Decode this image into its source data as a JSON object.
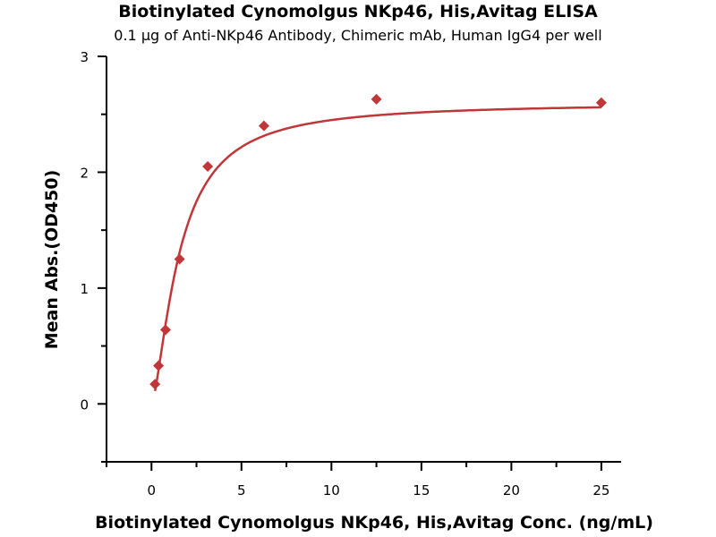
{
  "chart_data": {
    "type": "scatter",
    "title": "Biotinylated Cynomolgus NKp46, His,Avitag ELISA",
    "subtitle": "0.1 μg of Anti-NKp46 Antibody, Chimeric mAb, Human IgG4 per well",
    "xlabel": "Biotinylated Cynomolgus NKp46, His,Avitag Conc. (ng/mL)",
    "ylabel": "Mean Abs.(OD450)",
    "xlim": [
      -2.5,
      26.1
    ],
    "ylim": [
      -0.5,
      3
    ],
    "xticks": [
      0,
      5,
      10,
      15,
      20,
      25
    ],
    "yticks": [
      0,
      1,
      2,
      3
    ],
    "series": [
      {
        "name": "data",
        "color": "#c0373a",
        "x": [
          0.195,
          0.39,
          0.78,
          1.56,
          3.125,
          6.25,
          12.5,
          25
        ],
        "y": [
          0.17,
          0.33,
          0.64,
          1.25,
          2.05,
          2.4,
          2.63,
          2.6
        ]
      }
    ],
    "fit": {
      "type": "4PL",
      "bottom": 0,
      "top": 2.6,
      "ec50": 1.55,
      "hill": 1.5
    }
  }
}
